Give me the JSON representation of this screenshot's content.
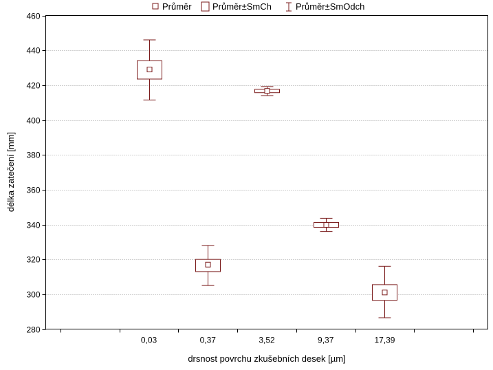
{
  "chart_data": {
    "type": "box",
    "xlabel": "drsnost povrchu zkušebních desek [µm]",
    "ylabel": "délka zatečení [mm]",
    "categories": [
      "0,03",
      "0,37",
      "3,52",
      "9,37",
      "17,39"
    ],
    "ylim": [
      280,
      460
    ],
    "yticks": [
      280,
      300,
      320,
      340,
      360,
      380,
      400,
      420,
      440,
      460
    ],
    "yticklabels": [
      "280",
      "300",
      "320",
      "340",
      "360",
      "380",
      "400",
      "420",
      "440",
      "460"
    ],
    "grid": true,
    "legend_position": "top-center",
    "legend": [
      {
        "label": "Průměr",
        "marker": "small-square"
      },
      {
        "label": "Průměr±SmCh",
        "marker": "box"
      },
      {
        "label": "Průměr±SmOdch",
        "marker": "whisker"
      }
    ],
    "series": [
      {
        "category": "0,03",
        "mean": 429,
        "se_low": 423.5,
        "se_high": 434,
        "sd_low": 411.5,
        "sd_high": 446
      },
      {
        "category": "0,37",
        "mean": 317,
        "se_low": 313,
        "se_high": 320,
        "sd_low": 305,
        "sd_high": 328
      },
      {
        "category": "3,52",
        "mean": 416.7,
        "se_low": 415.7,
        "se_high": 417.6,
        "sd_low": 414,
        "sd_high": 419.2
      },
      {
        "category": "9,37",
        "mean": 339.8,
        "se_low": 338.4,
        "se_high": 341.2,
        "sd_low": 336,
        "sd_high": 343.6
      },
      {
        "category": "17,39",
        "mean": 301,
        "se_low": 296.5,
        "se_high": 305.5,
        "sd_low": 286.5,
        "sd_high": 316
      }
    ],
    "colors": {
      "series": "#7a1a1a",
      "grid": "#a0a0a0",
      "axis": "#000000"
    }
  }
}
